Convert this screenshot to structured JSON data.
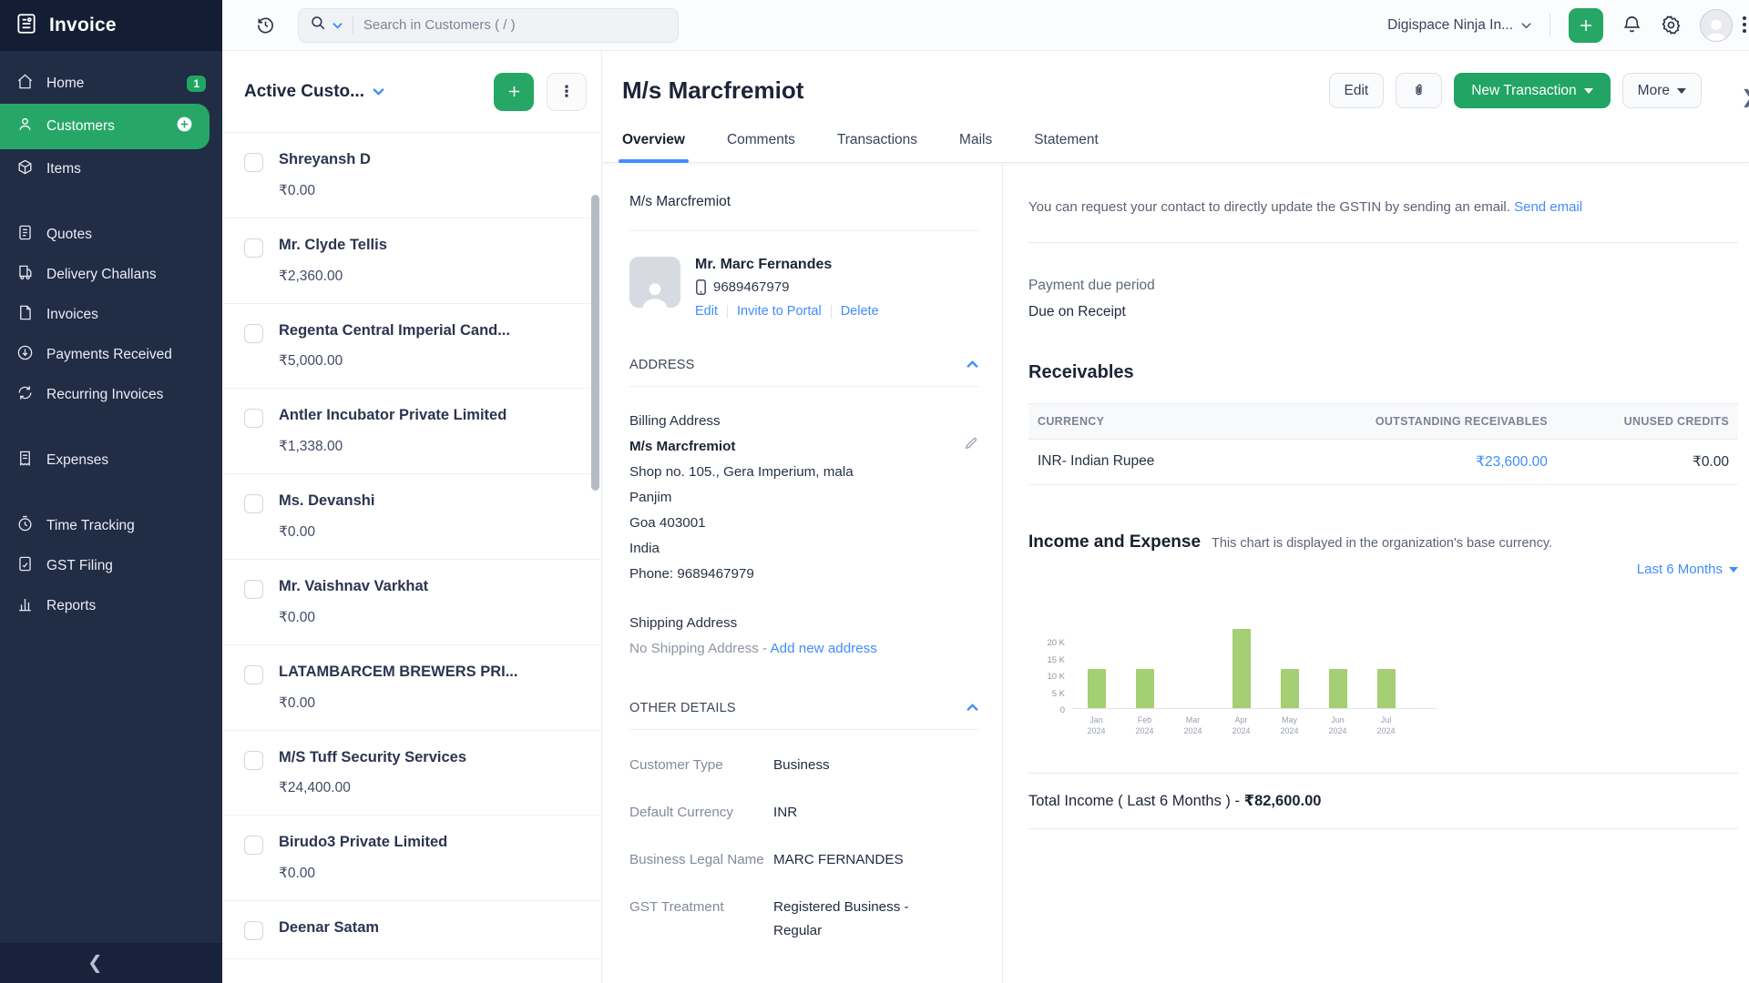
{
  "app": {
    "title": "Invoice"
  },
  "topbar": {
    "search_placeholder": "Search in Customers ( / )",
    "org_name": "Digispace Ninja In..."
  },
  "sidebar": {
    "items": [
      {
        "label": "Home",
        "badge": "1"
      },
      {
        "label": "Customers"
      },
      {
        "label": "Items"
      },
      {
        "label": "Quotes"
      },
      {
        "label": "Delivery Challans"
      },
      {
        "label": "Invoices"
      },
      {
        "label": "Payments Received"
      },
      {
        "label": "Recurring Invoices"
      },
      {
        "label": "Expenses"
      },
      {
        "label": "Time Tracking"
      },
      {
        "label": "GST Filing"
      },
      {
        "label": "Reports"
      }
    ]
  },
  "customer_list": {
    "title": "Active Custo...",
    "items": [
      {
        "name": "Shreyansh D",
        "amount": "₹0.00"
      },
      {
        "name": "Mr. Clyde Tellis",
        "amount": "₹2,360.00"
      },
      {
        "name": "Regenta Central Imperial Cand...",
        "amount": "₹5,000.00"
      },
      {
        "name": "Antler Incubator Private Limited",
        "amount": "₹1,338.00"
      },
      {
        "name": "Ms. Devanshi",
        "amount": "₹0.00"
      },
      {
        "name": "Mr. Vaishnav Varkhat",
        "amount": "₹0.00"
      },
      {
        "name": "LATAMBARCEM BREWERS PRI...",
        "amount": "₹0.00"
      },
      {
        "name": "M/S Tuff Security Services",
        "amount": "₹24,400.00"
      },
      {
        "name": "Birudo3 Private Limited",
        "amount": "₹0.00"
      },
      {
        "name": "Deenar Satam",
        "amount": ""
      }
    ]
  },
  "customer": {
    "title": "M/s Marcfremiot",
    "actions": {
      "edit": "Edit",
      "new_transaction": "New Transaction",
      "more": "More"
    },
    "tabs": [
      {
        "label": "Overview"
      },
      {
        "label": "Comments"
      },
      {
        "label": "Transactions"
      },
      {
        "label": "Mails"
      },
      {
        "label": "Statement"
      }
    ],
    "display_name": "M/s Marcfremiot",
    "contact": {
      "person": "Mr. Marc Fernandes",
      "phone": "9689467979",
      "links": {
        "edit": "Edit",
        "invite": "Invite to Portal",
        "delete": "Delete"
      }
    },
    "address_section": "ADDRESS",
    "billing": {
      "label": "Billing Address",
      "name": "M/s Marcfremiot",
      "line1": "Shop no. 105., Gera Imperium, mala",
      "line2": "Panjim",
      "line3": "Goa 403001",
      "line4": "India",
      "line5": "Phone: 9689467979"
    },
    "shipping": {
      "label": "Shipping Address",
      "empty": "No Shipping Address -",
      "add_link": "Add new address"
    },
    "other_details_section": "OTHER DETAILS",
    "other_details": [
      {
        "label": "Customer Type",
        "value": "Business"
      },
      {
        "label": "Default Currency",
        "value": "INR"
      },
      {
        "label": "Business Legal Name",
        "value": "MARC FERNANDES"
      },
      {
        "label": "GST Treatment",
        "value": "Registered Business - Regular"
      }
    ],
    "gstin_note": "You can request your contact to directly update the GSTIN by sending an email.",
    "send_email_link": "Send email",
    "payment_due": {
      "label": "Payment due period",
      "value": "Due on Receipt"
    },
    "receivables": {
      "title": "Receivables",
      "headers": {
        "currency": "CURRENCY",
        "outstanding": "OUTSTANDING RECEIVABLES",
        "unused": "UNUSED CREDITS"
      },
      "row": {
        "currency": "INR- Indian Rupee",
        "outstanding": "₹23,600.00",
        "unused": "₹0.00"
      }
    },
    "total_income_label": "Total Income ( Last 6 Months ) - ",
    "total_income_amount": "₹82,600.00"
  },
  "chart_data": {
    "type": "bar",
    "title": "Income and Expense",
    "subtitle": "This chart is displayed in the organization's base currency.",
    "period_selector": "Last 6 Months",
    "categories": [
      "Jan 2024",
      "Feb 2024",
      "Mar 2024",
      "Apr 2024",
      "May 2024",
      "Jun 2024",
      "Jul 2024"
    ],
    "series": [
      {
        "name": "Income",
        "values": [
          11800,
          11800,
          0,
          23600,
          11800,
          11800,
          11800
        ]
      }
    ],
    "ylim": [
      0,
      25000
    ],
    "yticks": [
      0,
      5000,
      10000,
      15000,
      20000
    ],
    "ytick_labels": [
      "0",
      "5 K",
      "10 K",
      "15 K",
      "20 K"
    ],
    "bar_color": "#a4cf72",
    "grid": false,
    "legend": false
  },
  "colors": {
    "accent_green": "#21a464",
    "link_blue": "#408dfb",
    "sidebar_navy": "#212c45"
  }
}
